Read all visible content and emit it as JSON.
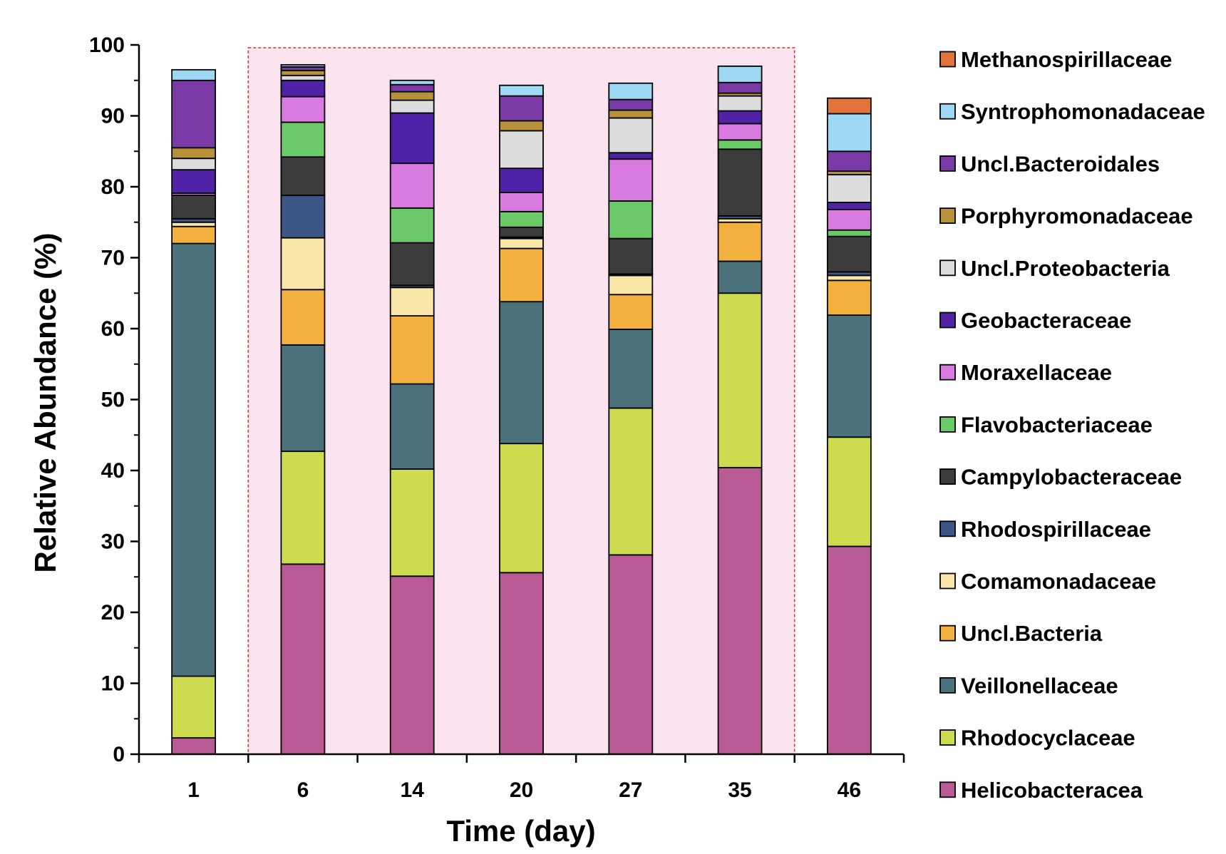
{
  "chart_data": {
    "type": "bar",
    "stacked": true,
    "title": "",
    "xlabel": "Time (day)",
    "ylabel": "Relative Abundance (%)",
    "ylim": [
      0,
      100
    ],
    "yticks": [
      0,
      10,
      20,
      30,
      40,
      50,
      60,
      70,
      80,
      90,
      100
    ],
    "categories": [
      "1",
      "6",
      "14",
      "20",
      "27",
      "35",
      "46"
    ],
    "highlight_region": {
      "from_category": "6",
      "to_category": "35",
      "fill": "#fbe3ef",
      "border": "#d9302c",
      "style": "dashed"
    },
    "legend_position": "right",
    "series": [
      {
        "name": "Helicobacteracea",
        "color": "#b85a93",
        "values": [
          2.3,
          26.8,
          25.1,
          25.6,
          28.1,
          40.4,
          29.3
        ]
      },
      {
        "name": "Rhodocyclaceae",
        "color": "#cddc4e",
        "values": [
          8.7,
          15.9,
          15.1,
          18.2,
          20.7,
          24.6,
          15.4
        ]
      },
      {
        "name": "Veillonellaceae",
        "color": "#4b727a",
        "values": [
          61.0,
          15.0,
          12.0,
          20.0,
          11.1,
          4.5,
          17.2
        ]
      },
      {
        "name": "Uncl.Bacteria",
        "color": "#f2b13f",
        "values": [
          2.4,
          7.8,
          9.6,
          7.5,
          4.9,
          5.5,
          4.9
        ]
      },
      {
        "name": "Comamonadaceae",
        "color": "#f8e6a8",
        "values": [
          0.6,
          7.3,
          4.0,
          1.4,
          2.7,
          0.5,
          0.7
        ]
      },
      {
        "name": "Rhodospirillaceae",
        "color": "#3c5686",
        "values": [
          0.5,
          6.0,
          0.3,
          0.2,
          0.2,
          0.4,
          0.5
        ]
      },
      {
        "name": "Campylobacteraceae",
        "color": "#3c3c3c",
        "values": [
          3.3,
          5.4,
          6.0,
          1.4,
          5.0,
          9.4,
          5.0
        ]
      },
      {
        "name": "Flavobacteriaceae",
        "color": "#6cc96a",
        "values": [
          0.0,
          4.9,
          4.9,
          2.2,
          5.3,
          1.3,
          0.9
        ]
      },
      {
        "name": "Moraxellaceae",
        "color": "#d97ae0",
        "values": [
          0.3,
          3.6,
          6.3,
          2.7,
          5.9,
          2.3,
          2.9
        ]
      },
      {
        "name": "Geobacteraceae",
        "color": "#4f22a8",
        "values": [
          3.3,
          2.3,
          7.1,
          3.4,
          0.9,
          1.8,
          1.0
        ]
      },
      {
        "name": "Uncl.Proteobacteria",
        "color": "#dcdcdc",
        "values": [
          1.6,
          0.7,
          1.8,
          5.3,
          4.9,
          2.1,
          3.9
        ]
      },
      {
        "name": "Porphyromonadaceae",
        "color": "#b8923a",
        "values": [
          1.5,
          0.7,
          1.2,
          1.4,
          1.1,
          0.4,
          0.5
        ]
      },
      {
        "name": "Uncl.Bacteroidales",
        "color": "#7a3aa6",
        "values": [
          9.5,
          0.5,
          1.0,
          3.5,
          1.5,
          1.5,
          2.8
        ]
      },
      {
        "name": "Syntrophomonadaceae",
        "color": "#9ed8f5",
        "values": [
          1.5,
          0.3,
          0.6,
          1.5,
          2.3,
          2.3,
          5.3
        ]
      },
      {
        "name": "Methanospirillaceae",
        "color": "#e0743a",
        "values": [
          0.0,
          0.0,
          0.0,
          0.0,
          0.0,
          0.0,
          2.2
        ]
      }
    ]
  }
}
